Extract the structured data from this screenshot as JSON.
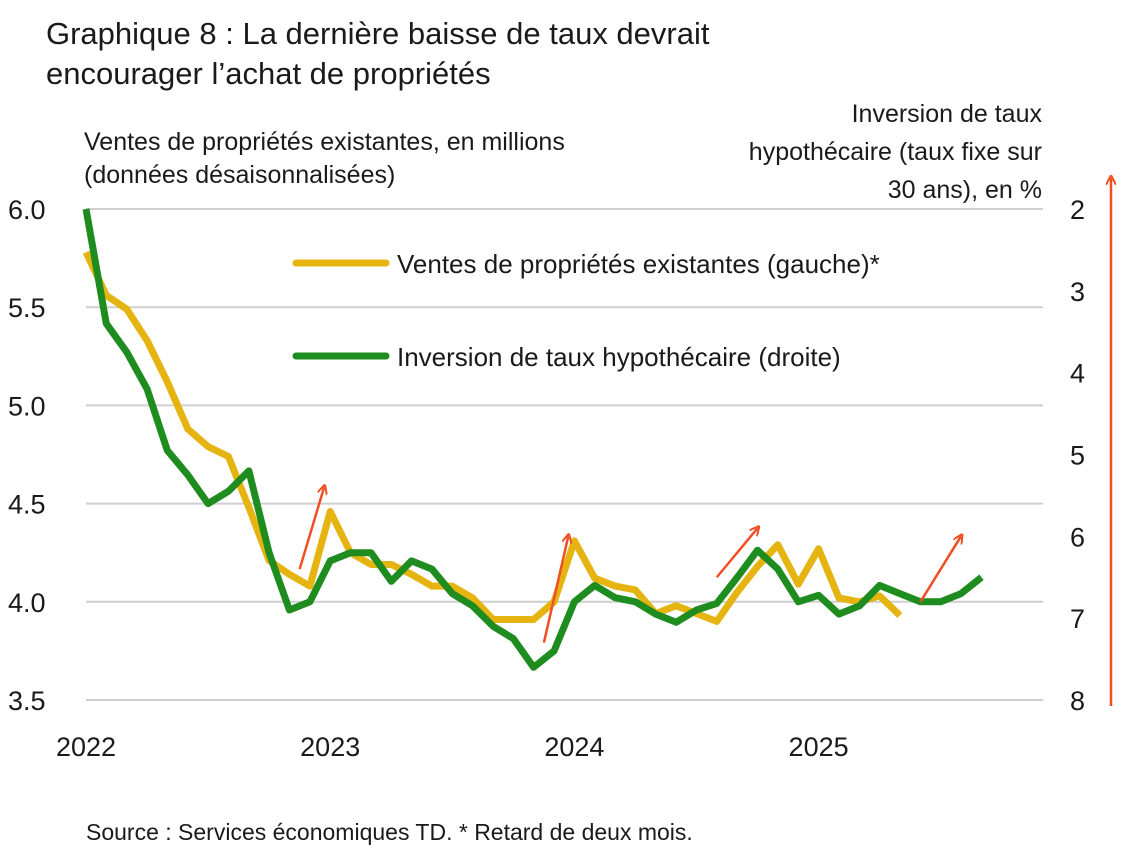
{
  "title_lines": [
    "Graphique 8 : La dernière baisse de taux devrait",
    "encourager l’achat de propriétés"
  ],
  "left_axis_label": [
    "Ventes de propriétés existantes, en millions",
    "(données désaisonnalisées)"
  ],
  "right_axis_label": [
    "Inversion de taux",
    "hypothécaire (taux fixe sur",
    "30 ans), en %"
  ],
  "source": "Source : Services économiques TD. * Retard de deux mois.",
  "colors": {
    "sales": "#E6B411",
    "mortgage": "#1E8C1E",
    "arrow": "#F04E23",
    "grid": "#CFCFCF"
  },
  "chart_data": {
    "type": "line",
    "x_ticks": [
      "2022",
      "2023",
      "2024",
      "2025"
    ],
    "x_range": [
      2022.0,
      2025.95
    ],
    "y_left": {
      "ticks": [
        "6.0",
        "5.5",
        "5.0",
        "4.5",
        "4.0",
        "3.5"
      ],
      "ylim": [
        3.5,
        6.0
      ]
    },
    "y_right": {
      "ticks": [
        "2",
        "3",
        "4",
        "5",
        "6",
        "7",
        "8"
      ],
      "ylim": [
        2,
        8
      ],
      "inverted": true
    },
    "grid": true,
    "legend_position": "top-center",
    "series": [
      {
        "name": "Ventes de propriétés existantes (gauche)*",
        "axis": "left",
        "x": [
          2022.0,
          2022.083,
          2022.167,
          2022.25,
          2022.333,
          2022.417,
          2022.5,
          2022.583,
          2022.667,
          2022.75,
          2022.833,
          2022.917,
          2023.0,
          2023.083,
          2023.167,
          2023.25,
          2023.333,
          2023.417,
          2023.5,
          2023.583,
          2023.667,
          2023.75,
          2023.833,
          2023.917,
          2024.0,
          2024.083,
          2024.167,
          2024.25,
          2024.333,
          2024.417,
          2024.5,
          2024.583,
          2024.667,
          2024.75,
          2024.833,
          2024.917,
          2025.0,
          2025.083,
          2025.167,
          2025.25,
          2025.333
        ],
        "values": [
          5.78,
          5.56,
          5.49,
          5.33,
          5.12,
          4.88,
          4.79,
          4.74,
          4.48,
          4.21,
          4.14,
          4.08,
          4.46,
          4.25,
          4.19,
          4.19,
          4.14,
          4.08,
          4.08,
          4.02,
          3.91,
          3.91,
          3.91,
          4.0,
          4.31,
          4.12,
          4.08,
          4.06,
          3.94,
          3.98,
          3.94,
          3.9,
          4.05,
          4.18,
          4.29,
          4.09,
          4.27,
          4.02,
          4.0,
          4.03,
          3.93
        ]
      },
      {
        "name": "Inversion de taux hypothécaire (droite)",
        "axis": "right",
        "x": [
          2022.0,
          2022.083,
          2022.167,
          2022.25,
          2022.333,
          2022.417,
          2022.5,
          2022.583,
          2022.667,
          2022.75,
          2022.833,
          2022.917,
          2023.0,
          2023.083,
          2023.167,
          2023.25,
          2023.333,
          2023.417,
          2023.5,
          2023.583,
          2023.667,
          2023.75,
          2023.833,
          2023.917,
          2024.0,
          2024.083,
          2024.167,
          2024.25,
          2024.333,
          2024.417,
          2024.5,
          2024.583,
          2024.667,
          2024.75,
          2024.833,
          2024.917,
          2025.0,
          2025.083,
          2025.167,
          2025.25,
          2025.333,
          2025.417,
          2025.5,
          2025.583,
          2025.667
        ],
        "values": [
          1.85,
          3.4,
          3.75,
          4.2,
          4.95,
          5.25,
          5.6,
          5.45,
          5.2,
          6.2,
          6.9,
          6.8,
          6.3,
          6.2,
          6.2,
          6.55,
          6.3,
          6.4,
          6.7,
          6.85,
          7.1,
          7.25,
          7.6,
          7.4,
          6.8,
          6.6,
          6.75,
          6.8,
          6.95,
          7.05,
          6.9,
          6.82,
          6.5,
          6.17,
          6.4,
          6.8,
          6.72,
          6.95,
          6.85,
          6.6,
          6.7,
          6.8,
          6.8,
          6.7,
          6.5
        ]
      }
    ],
    "annotations": [
      {
        "type": "arrow",
        "meaning": "hausse",
        "from": [
          2022.875,
          6.4
        ],
        "to": [
          2022.975,
          5.4
        ],
        "axis": "right"
      },
      {
        "type": "arrow",
        "meaning": "hausse",
        "from": [
          2023.875,
          7.3
        ],
        "to": [
          2023.975,
          6.0
        ],
        "axis": "right"
      },
      {
        "type": "arrow",
        "meaning": "hausse",
        "from": [
          2024.583,
          6.5
        ],
        "to": [
          2024.75,
          5.9
        ],
        "axis": "right"
      },
      {
        "type": "arrow",
        "meaning": "hausse",
        "from": [
          2025.417,
          6.8
        ],
        "to": [
          2025.583,
          6.0
        ],
        "axis": "right"
      },
      {
        "type": "arrow",
        "meaning": "hausse",
        "side": "right-axis"
      }
    ]
  }
}
